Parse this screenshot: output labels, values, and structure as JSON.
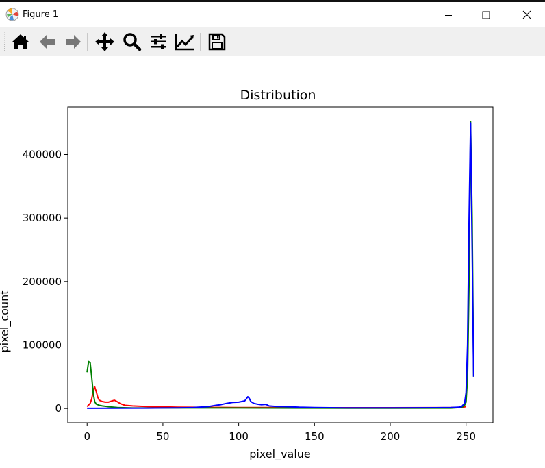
{
  "window": {
    "title": "Figure 1",
    "app_icon": "matplotlib-icon",
    "controls": [
      "minimize-icon",
      "maximize-icon",
      "close-icon"
    ]
  },
  "toolbar": {
    "tools": [
      "home-icon",
      "back-arrow-icon",
      "forward-arrow-icon",
      "pan-move-icon",
      "zoom-magnifier-icon",
      "subplots-sliders-icon",
      "edit-axes-icon",
      "save-floppy-icon"
    ]
  },
  "chart_data": {
    "type": "line",
    "title": "Distribution",
    "xlabel": "pixel_value",
    "ylabel": "pixel_count",
    "xlim": [
      -12.75,
      267.75
    ],
    "ylim": [
      -22500,
      475000
    ],
    "xticks": [
      0,
      50,
      100,
      150,
      200,
      250
    ],
    "yticks": [
      0,
      100000,
      200000,
      300000,
      400000
    ],
    "grid": false,
    "legend": "none",
    "series": [
      {
        "color": "#ff0000",
        "points": [
          [
            0,
            3000
          ],
          [
            2,
            8000
          ],
          [
            3,
            15000
          ],
          [
            4,
            27000
          ],
          [
            5,
            34000
          ],
          [
            6,
            27000
          ],
          [
            7,
            18000
          ],
          [
            8,
            13000
          ],
          [
            10,
            11000
          ],
          [
            12,
            10000
          ],
          [
            14,
            10000
          ],
          [
            16,
            11500
          ],
          [
            18,
            13000
          ],
          [
            20,
            10500
          ],
          [
            22,
            7500
          ],
          [
            25,
            5000
          ],
          [
            30,
            4000
          ],
          [
            40,
            3000
          ],
          [
            50,
            2500
          ],
          [
            60,
            2000
          ],
          [
            80,
            1800
          ],
          [
            100,
            1500
          ],
          [
            120,
            1500
          ],
          [
            150,
            1200
          ],
          [
            200,
            1200
          ],
          [
            240,
            1500
          ],
          [
            248,
            2000
          ],
          [
            250,
            3000
          ]
        ]
      },
      {
        "color": "#008000",
        "points": [
          [
            0,
            57000
          ],
          [
            1,
            74000
          ],
          [
            2,
            72000
          ],
          [
            3,
            50000
          ],
          [
            4,
            25000
          ],
          [
            5,
            11000
          ],
          [
            6,
            7000
          ],
          [
            8,
            5000
          ],
          [
            10,
            4000
          ],
          [
            15,
            2500
          ],
          [
            20,
            1500
          ],
          [
            30,
            800
          ],
          [
            50,
            800
          ],
          [
            100,
            800
          ],
          [
            150,
            600
          ],
          [
            200,
            400
          ],
          [
            240,
            600
          ],
          [
            246,
            1500
          ],
          [
            248,
            3000
          ],
          [
            249,
            5000
          ],
          [
            250,
            10000
          ],
          [
            251,
            50000
          ],
          [
            252,
            200000
          ],
          [
            253,
            452000
          ],
          [
            254,
            300000
          ],
          [
            255,
            50000
          ]
        ]
      },
      {
        "color": "#0000ff",
        "points": [
          [
            0,
            300
          ],
          [
            20,
            400
          ],
          [
            40,
            600
          ],
          [
            50,
            800
          ],
          [
            60,
            1000
          ],
          [
            70,
            1500
          ],
          [
            80,
            3000
          ],
          [
            85,
            5000
          ],
          [
            88,
            6000
          ],
          [
            92,
            8000
          ],
          [
            96,
            9500
          ],
          [
            100,
            10000
          ],
          [
            102,
            11000
          ],
          [
            104,
            12000
          ],
          [
            105,
            15000
          ],
          [
            106,
            18500
          ],
          [
            107,
            16000
          ],
          [
            108,
            11000
          ],
          [
            110,
            8000
          ],
          [
            112,
            7000
          ],
          [
            115,
            6000
          ],
          [
            118,
            6500
          ],
          [
            120,
            4000
          ],
          [
            125,
            3200
          ],
          [
            130,
            3000
          ],
          [
            135,
            2600
          ],
          [
            140,
            2000
          ],
          [
            150,
            1500
          ],
          [
            170,
            1000
          ],
          [
            200,
            900
          ],
          [
            230,
            1200
          ],
          [
            240,
            1500
          ],
          [
            245,
            2000
          ],
          [
            247,
            3000
          ],
          [
            249,
            8000
          ],
          [
            250,
            25000
          ],
          [
            251,
            100000
          ],
          [
            252,
            300000
          ],
          [
            253,
            450000
          ],
          [
            254,
            250000
          ],
          [
            255,
            50000
          ]
        ]
      }
    ]
  }
}
